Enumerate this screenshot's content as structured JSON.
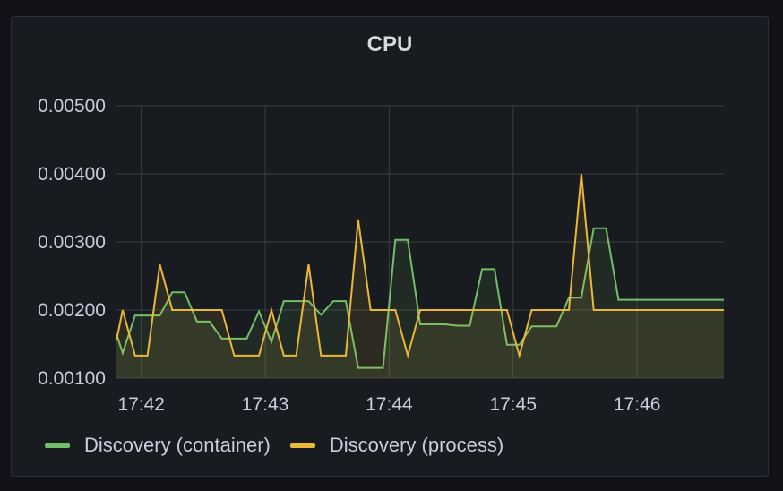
{
  "panel": {
    "title": "CPU"
  },
  "chart_data": {
    "type": "line",
    "title": "CPU",
    "xlabel": "",
    "ylabel": "",
    "x": [
      "17:41:48",
      "17:41:51",
      "17:41:57",
      "17:42:03",
      "17:42:09",
      "17:42:15",
      "17:42:21",
      "17:42:27",
      "17:42:33",
      "17:42:39",
      "17:42:45",
      "17:42:51",
      "17:42:57",
      "17:43:03",
      "17:43:09",
      "17:43:15",
      "17:43:21",
      "17:43:27",
      "17:43:33",
      "17:43:39",
      "17:43:45",
      "17:43:51",
      "17:43:57",
      "17:44:03",
      "17:44:09",
      "17:44:15",
      "17:44:21",
      "17:44:27",
      "17:44:33",
      "17:44:39",
      "17:44:45",
      "17:44:51",
      "17:44:57",
      "17:45:03",
      "17:45:09",
      "17:45:15",
      "17:45:21",
      "17:45:27",
      "17:45:33",
      "17:45:39",
      "17:45:45",
      "17:45:51",
      "17:45:57",
      "17:46:03",
      "17:46:09",
      "17:46:15",
      "17:46:21",
      "17:46:27",
      "17:46:33",
      "17:46:39",
      "17:46:42"
    ],
    "x_ticks": [
      "17:42",
      "17:43",
      "17:44",
      "17:45",
      "17:46"
    ],
    "y_ticks": [
      "0.00100",
      "0.00200",
      "0.00300",
      "0.00400",
      "0.00500"
    ],
    "ylim": [
      0.001,
      0.005
    ],
    "grid": true,
    "legend_position": "bottom-left",
    "series": [
      {
        "name": "Discovery (container)",
        "color": "#73bf69",
        "values": [
          0.00165,
          0.00137,
          0.00192,
          0.00192,
          0.00192,
          0.00226,
          0.00226,
          0.00183,
          0.00183,
          0.00158,
          0.00158,
          0.00158,
          0.00198,
          0.00153,
          0.00213,
          0.00213,
          0.00213,
          0.00193,
          0.00213,
          0.00213,
          0.00115,
          0.00115,
          0.00115,
          0.00303,
          0.00303,
          0.00179,
          0.00179,
          0.00179,
          0.00177,
          0.00177,
          0.0026,
          0.0026,
          0.00149,
          0.00149,
          0.00176,
          0.00176,
          0.00176,
          0.00218,
          0.00218,
          0.0032,
          0.0032,
          0.00215,
          0.00215,
          0.00215,
          0.00215,
          0.00215,
          0.00215,
          0.00215,
          0.00215,
          0.00215,
          0.00215
        ]
      },
      {
        "name": "Discovery (process)",
        "color": "#eab839",
        "values": [
          0.00155,
          0.002,
          0.00133,
          0.00133,
          0.00267,
          0.002,
          0.002,
          0.002,
          0.002,
          0.002,
          0.00133,
          0.00133,
          0.00133,
          0.002,
          0.00133,
          0.00133,
          0.00267,
          0.00133,
          0.00133,
          0.00133,
          0.00333,
          0.002,
          0.002,
          0.002,
          0.00133,
          0.002,
          0.002,
          0.002,
          0.002,
          0.002,
          0.002,
          0.002,
          0.002,
          0.00133,
          0.002,
          0.002,
          0.002,
          0.002,
          0.004,
          0.002,
          0.002,
          0.002,
          0.002,
          0.002,
          0.002,
          0.002,
          0.002,
          0.002,
          0.002,
          0.002,
          0.002
        ]
      }
    ]
  },
  "legend": {
    "items": [
      {
        "label": "Discovery (container)",
        "color": "#73bf69"
      },
      {
        "label": "Discovery (process)",
        "color": "#eab839"
      }
    ]
  }
}
